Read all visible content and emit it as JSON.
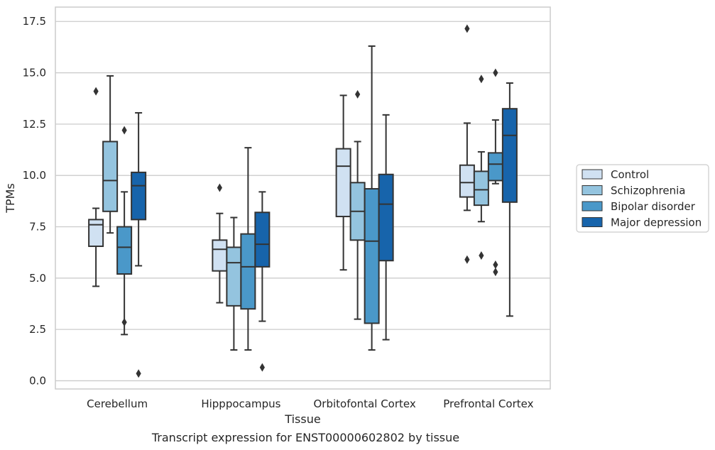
{
  "caption": "Transcript expression for ENST00000602802 by tissue",
  "chart_data": {
    "type": "boxplot",
    "title": "",
    "xlabel": "Tissue",
    "ylabel": "TPMs",
    "ylim": [
      -0.4,
      18.2
    ],
    "yticks": [
      0.0,
      2.5,
      5.0,
      7.5,
      10.0,
      12.5,
      15.0,
      17.5
    ],
    "ytick_labels": [
      "0.0",
      "2.5",
      "5.0",
      "7.5",
      "10.0",
      "12.5",
      "15.0",
      "17.5"
    ],
    "grid": "horizontal",
    "legend_position": "right-center",
    "categories": [
      "Cerebellum",
      "Hipppocampus",
      "Orbitofontal Cortex",
      "Prefrontal Cortex"
    ],
    "series": [
      {
        "name": "Control",
        "color": "#d0e1f2",
        "boxes": [
          {
            "category": "Cerebellum",
            "whisker_low": 4.6,
            "q1": 6.55,
            "median": 7.6,
            "q3": 7.85,
            "whisker_high": 8.4,
            "outliers": [
              14.1
            ]
          },
          {
            "category": "Hipppocampus",
            "whisker_low": 3.8,
            "q1": 5.35,
            "median": 6.4,
            "q3": 6.85,
            "whisker_high": 8.15,
            "outliers": [
              9.4
            ]
          },
          {
            "category": "Orbitofontal Cortex",
            "whisker_low": 5.4,
            "q1": 8.0,
            "median": 10.45,
            "q3": 11.3,
            "whisker_high": 13.9,
            "outliers": []
          },
          {
            "category": "Prefrontal Cortex",
            "whisker_low": 8.3,
            "q1": 8.95,
            "median": 9.65,
            "q3": 10.5,
            "whisker_high": 12.55,
            "outliers": [
              5.9,
              17.15
            ]
          }
        ]
      },
      {
        "name": "Schizophrenia",
        "color": "#94c4df",
        "boxes": [
          {
            "category": "Cerebellum",
            "whisker_low": 7.2,
            "q1": 8.25,
            "median": 9.75,
            "q3": 11.65,
            "whisker_high": 14.85,
            "outliers": []
          },
          {
            "category": "Hipppocampus",
            "whisker_low": 1.5,
            "q1": 3.65,
            "median": 5.75,
            "q3": 6.5,
            "whisker_high": 7.95,
            "outliers": []
          },
          {
            "category": "Orbitofontal Cortex",
            "whisker_low": 3.0,
            "q1": 6.85,
            "median": 8.25,
            "q3": 9.65,
            "whisker_high": 11.65,
            "outliers": [
              13.95
            ]
          },
          {
            "category": "Prefrontal Cortex",
            "whisker_low": 7.75,
            "q1": 8.55,
            "median": 9.3,
            "q3": 10.2,
            "whisker_high": 11.15,
            "outliers": [
              6.1,
              14.7
            ]
          }
        ]
      },
      {
        "name": "Bipolar disorder",
        "color": "#4a98c9",
        "boxes": [
          {
            "category": "Cerebellum",
            "whisker_low": 2.25,
            "q1": 5.2,
            "median": 6.5,
            "q3": 7.5,
            "whisker_high": 9.2,
            "outliers": [
              2.85,
              12.2
            ]
          },
          {
            "category": "Hipppocampus",
            "whisker_low": 1.5,
            "q1": 3.5,
            "median": 5.55,
            "q3": 7.15,
            "whisker_high": 11.35,
            "outliers": []
          },
          {
            "category": "Orbitofontal Cortex",
            "whisker_low": 1.5,
            "q1": 2.8,
            "median": 6.8,
            "q3": 9.35,
            "whisker_high": 16.3,
            "outliers": []
          },
          {
            "category": "Prefrontal Cortex",
            "whisker_low": 9.6,
            "q1": 9.75,
            "median": 10.55,
            "q3": 11.1,
            "whisker_high": 12.7,
            "outliers": [
              5.3,
              5.65,
              15.0
            ]
          }
        ]
      },
      {
        "name": "Major depression",
        "color": "#1764ab",
        "boxes": [
          {
            "category": "Cerebellum",
            "whisker_low": 5.6,
            "q1": 7.85,
            "median": 9.5,
            "q3": 10.15,
            "whisker_high": 13.05,
            "outliers": [
              0.35
            ]
          },
          {
            "category": "Hipppocampus",
            "whisker_low": 2.9,
            "q1": 5.55,
            "median": 6.65,
            "q3": 8.2,
            "whisker_high": 9.2,
            "outliers": [
              0.65
            ]
          },
          {
            "category": "Orbitofontal Cortex",
            "whisker_low": 2.0,
            "q1": 5.85,
            "median": 8.6,
            "q3": 10.05,
            "whisker_high": 12.95,
            "outliers": []
          },
          {
            "category": "Prefrontal Cortex",
            "whisker_low": 3.15,
            "q1": 8.7,
            "median": 11.95,
            "q3": 13.25,
            "whisker_high": 14.5,
            "outliers": []
          }
        ]
      }
    ],
    "style": {
      "grid_color": "#cccccc",
      "axes_edge_color": "#cccccc",
      "line_color": "#333333"
    }
  }
}
